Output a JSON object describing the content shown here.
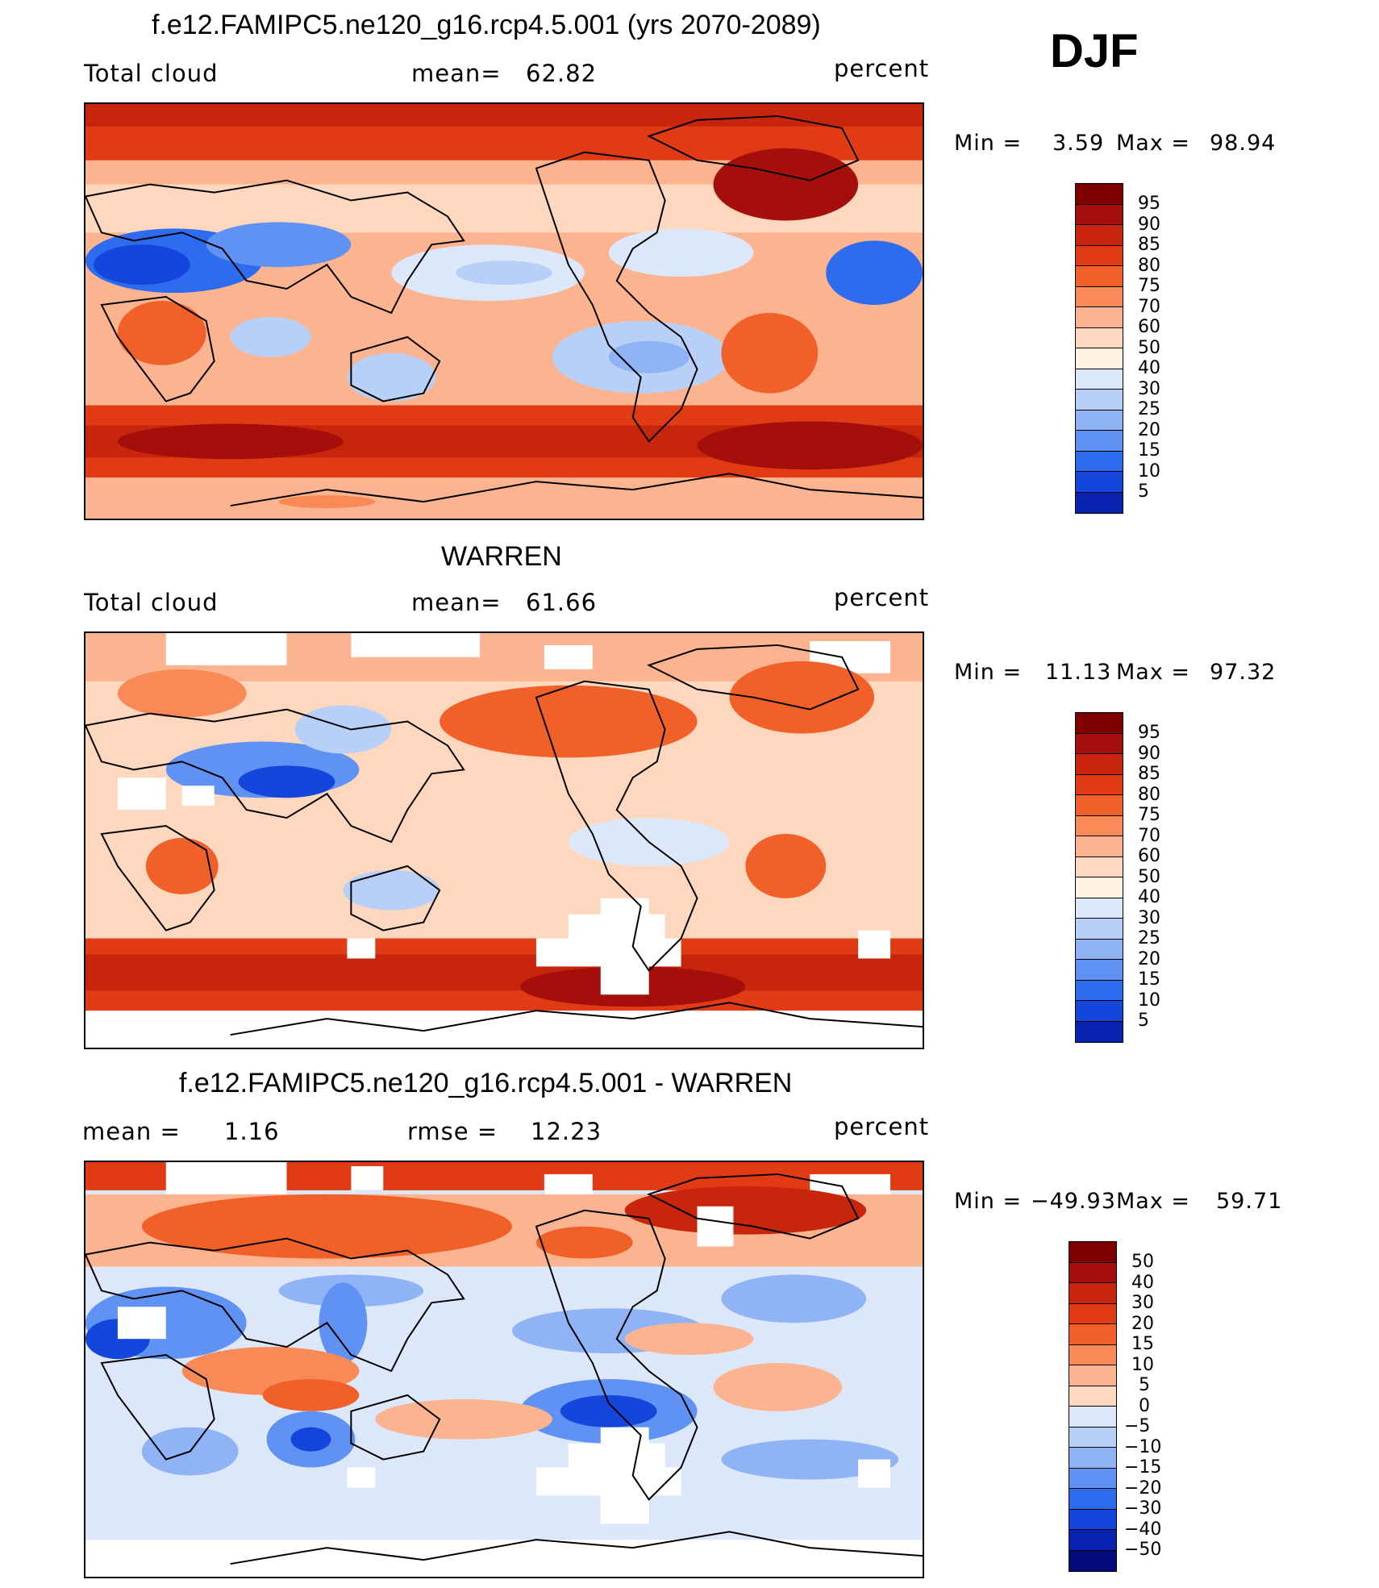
{
  "header": {
    "season": "DJF"
  },
  "panels": [
    {
      "title": "f.e12.FAMIPC5.ne120_g16.rcp4.5.001 (yrs 2070-2089)",
      "left_label": "Total cloud",
      "stat_label": "mean=",
      "stat_value": "62.82",
      "units": "percent",
      "min_label": "Min =",
      "min_value": "3.59",
      "max_label": "Max =",
      "max_value": "98.94",
      "colorbar_ticks": [
        "95",
        "90",
        "85",
        "80",
        "75",
        "70",
        "60",
        "50",
        "40",
        "30",
        "25",
        "20",
        "15",
        "10",
        "5"
      ],
      "colors": [
        "#7f0000",
        "#a50f0b",
        "#c8250d",
        "#e03b14",
        "#f2602a",
        "#f98a57",
        "#fbb48f",
        "#fdd8bf",
        "#fff0e2",
        "#dce8f9",
        "#b8d0f7",
        "#8fb3f5",
        "#5f92f2",
        "#2e6cef",
        "#1446dc",
        "#0a22b0",
        "#040b7a"
      ]
    },
    {
      "title": "WARREN",
      "left_label": "Total cloud",
      "stat_label": "mean=",
      "stat_value": "61.66",
      "units": "percent",
      "min_label": "Min =",
      "min_value": "11.13",
      "max_label": "Max =",
      "max_value": "97.32",
      "colorbar_ticks": [
        "95",
        "90",
        "85",
        "80",
        "75",
        "70",
        "60",
        "50",
        "40",
        "30",
        "25",
        "20",
        "15",
        "10",
        "5"
      ],
      "colors": [
        "#7f0000",
        "#a50f0b",
        "#c8250d",
        "#e03b14",
        "#f2602a",
        "#f98a57",
        "#fbb48f",
        "#fdd8bf",
        "#fff0e2",
        "#dce8f9",
        "#b8d0f7",
        "#8fb3f5",
        "#5f92f2",
        "#2e6cef",
        "#1446dc",
        "#0a22b0",
        "#040b7a"
      ]
    },
    {
      "title": "f.e12.FAMIPC5.ne120_g16.rcp4.5.001 - WARREN",
      "left_label": "mean =",
      "left_value": "1.16",
      "stat_label": "rmse =",
      "stat_value": "12.23",
      "units": "percent",
      "min_label": "Min =",
      "min_value": "−49.93",
      "max_label": "Max =",
      "max_value": "59.71",
      "colorbar_ticks": [
        "50",
        "40",
        "30",
        "20",
        "15",
        "10",
        "5",
        "0",
        "−5",
        "−10",
        "−15",
        "−20",
        "−30",
        "−40",
        "−50"
      ],
      "colors": [
        "#7f0000",
        "#a50f0b",
        "#c8250d",
        "#e03b14",
        "#f2602a",
        "#f98a57",
        "#fbb48f",
        "#fdd8bf",
        "#fff0e2",
        "#dce8f9",
        "#b8d0f7",
        "#8fb3f5",
        "#5f92f2",
        "#2e6cef",
        "#1446dc",
        "#0a22b0",
        "#040b7a"
      ]
    }
  ]
}
